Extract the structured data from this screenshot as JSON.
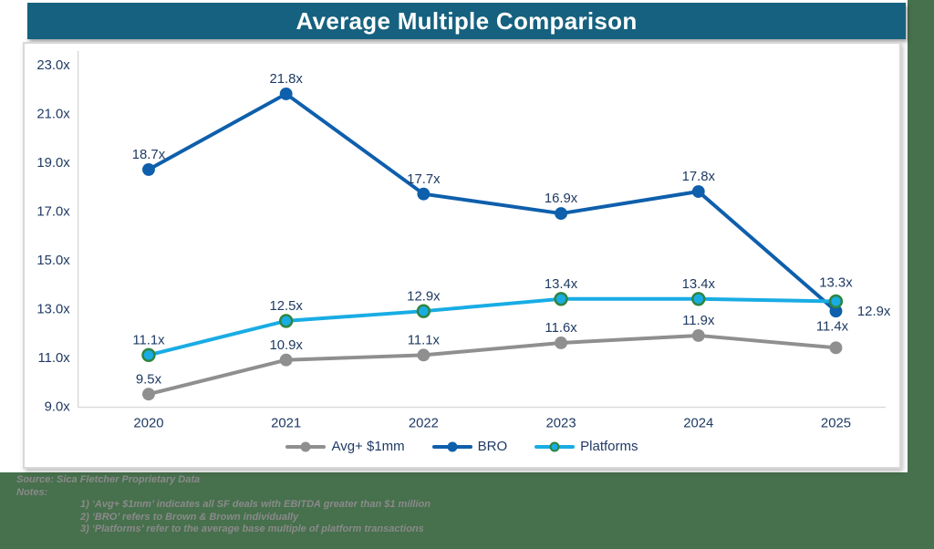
{
  "page": {
    "background_color": "#47704D",
    "banner_color": "#16617F"
  },
  "chart_data": {
    "type": "line",
    "title": "Average Multiple Comparison",
    "categories": [
      "2020",
      "2021",
      "2022",
      "2023",
      "2024",
      "2025"
    ],
    "xlabel": "",
    "ylabel": "",
    "ylim": [
      9.0,
      23.0
    ],
    "grid": false,
    "legend_position": "bottom",
    "label_color": "#1F3A63",
    "axis_color": "#D9D9D9",
    "y_axis": {
      "tick_labels": [
        "23.0x",
        "21.0x",
        "19.0x",
        "17.0x",
        "15.0x",
        "13.0x",
        "11.0x",
        "9.0x"
      ],
      "tick_values": [
        23,
        21,
        19,
        17,
        15,
        13,
        11,
        9
      ]
    },
    "series": [
      {
        "name": "Avg+ $1mm",
        "color": "#8F8F8F",
        "marker_fill": "#8F8F8F",
        "marker_stroke": "none",
        "values": [
          9.5,
          10.9,
          11.1,
          11.6,
          11.9,
          11.4
        ],
        "point_labels": [
          "9.5x",
          "10.9x",
          "11.1x",
          "11.6x",
          "11.9x",
          "11.4x"
        ]
      },
      {
        "name": "BRO",
        "color": "#0E5FAC",
        "marker_fill": "#0E5FAC",
        "marker_stroke": "none",
        "values": [
          18.7,
          21.8,
          17.7,
          16.9,
          17.8,
          12.9
        ],
        "point_labels": [
          "18.7x",
          "21.8x",
          "17.7x",
          "16.9x",
          "17.8x",
          "12.9x"
        ]
      },
      {
        "name": "Platforms",
        "color": "#19ACE4",
        "marker_fill": "#19ACE4",
        "marker_stroke": "#2E8540",
        "values": [
          11.1,
          12.5,
          12.9,
          13.4,
          13.4,
          13.3
        ],
        "point_labels": [
          "11.1x",
          "12.5x",
          "12.9x",
          "13.4x",
          "13.4x",
          "13.3x"
        ]
      }
    ]
  },
  "footer": {
    "source": "Source: Sica Fletcher Proprietary Data",
    "notes_label": "Notes:",
    "notes": [
      "1) ‘Avg+ $1mm’ indicates all SF deals with EBITDA greater than $1 million",
      "2) ‘BRO’ refers to Brown & Brown individually",
      "3) ‘Platforms’  refer to the average base multiple of platform transactions"
    ]
  }
}
